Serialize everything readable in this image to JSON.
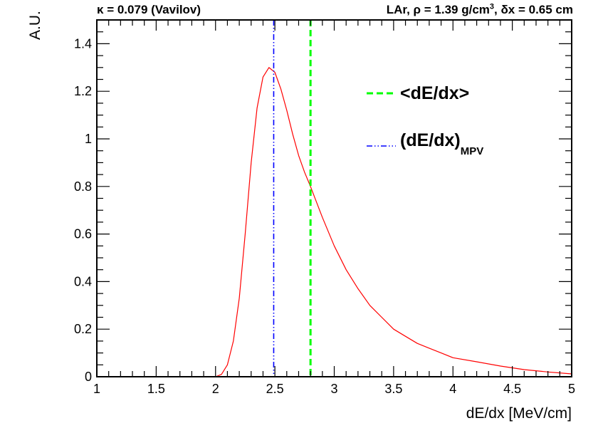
{
  "header": {
    "left_text": "κ = 0.079 (Vavilov)",
    "right_main": "LAr, ρ = 1.39 g/cm",
    "right_sup": "3",
    "right_tail": ", δx = 0.65 cm"
  },
  "legend": {
    "mean_label": "<dE/dx>",
    "mpv_label_main": "(dE/dx)",
    "mpv_label_sub": "MPV"
  },
  "colors": {
    "curve": "#ff0000",
    "mean_line": "#00ff00",
    "mpv_line": "#0000ff",
    "axes": "#000000"
  },
  "chart_data": {
    "type": "line",
    "xlabel": "dE/dx [MeV/cm]",
    "ylabel": "A.U.",
    "xlim": [
      1,
      5
    ],
    "ylim": [
      0,
      1.5
    ],
    "x_ticks": [
      1,
      1.5,
      2,
      2.5,
      3,
      3.5,
      4,
      4.5,
      5
    ],
    "x_tick_labels": [
      "1",
      "1.5",
      "2",
      "2.5",
      "3",
      "3.5",
      "4",
      "4.5",
      "5"
    ],
    "y_ticks": [
      0,
      0.2,
      0.4,
      0.6,
      0.8,
      1,
      1.2,
      1.4
    ],
    "y_tick_labels": [
      "0",
      "0.2",
      "0.4",
      "0.6",
      "0.8",
      "1",
      "1.2",
      "1.4"
    ],
    "grid": false,
    "legend_position": "top-right",
    "series": [
      {
        "x": [
          2.0,
          2.05,
          2.1,
          2.15,
          2.2,
          2.25,
          2.3,
          2.35,
          2.4,
          2.45,
          2.5,
          2.55,
          2.6,
          2.65,
          2.7,
          2.75,
          2.8,
          2.9,
          3.0,
          3.1,
          3.2,
          3.3,
          3.4,
          3.5,
          3.6,
          3.7,
          3.8,
          3.9,
          4.0,
          4.2,
          4.4,
          4.6,
          4.8,
          5.0
        ],
        "y": [
          0.0,
          0.01,
          0.05,
          0.15,
          0.33,
          0.6,
          0.9,
          1.13,
          1.26,
          1.3,
          1.28,
          1.21,
          1.12,
          1.02,
          0.93,
          0.86,
          0.8,
          0.67,
          0.55,
          0.45,
          0.37,
          0.3,
          0.25,
          0.2,
          0.17,
          0.14,
          0.12,
          0.1,
          0.08,
          0.063,
          0.045,
          0.03,
          0.02,
          0.012
        ]
      }
    ],
    "vlines": [
      {
        "name": "<dE/dx>",
        "x": 2.8,
        "style": "dashed"
      },
      {
        "name": "(dE/dx)MPV",
        "x": 2.49,
        "style": "dash-dot-dot"
      }
    ]
  }
}
